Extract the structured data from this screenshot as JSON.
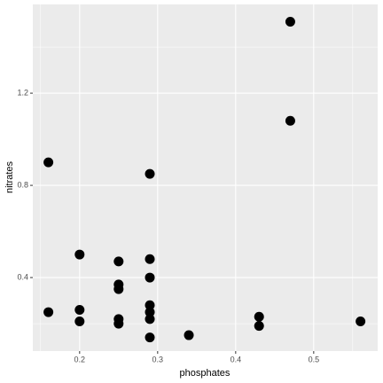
{
  "chart_data": {
    "type": "scatter",
    "x_label": "phosphates",
    "y_label": "nitrates",
    "x": [
      0.47,
      0.47,
      0.16,
      0.29,
      0.2,
      0.25,
      0.29,
      0.29,
      0.25,
      0.25,
      0.16,
      0.2,
      0.2,
      0.25,
      0.25,
      0.29,
      0.29,
      0.29,
      0.29,
      0.34,
      0.43,
      0.43,
      0.56
    ],
    "values": [
      1.51,
      1.08,
      0.9,
      0.85,
      0.5,
      0.47,
      0.48,
      0.4,
      0.37,
      0.35,
      0.25,
      0.26,
      0.21,
      0.22,
      0.2,
      0.28,
      0.25,
      0.22,
      0.14,
      0.15,
      0.23,
      0.19,
      0.21
    ],
    "color": "#000000",
    "xlim": [
      0.14,
      0.582
    ],
    "ylim": [
      0.081,
      1.585
    ],
    "xticks": [
      0.2,
      0.3,
      0.4,
      0.5
    ],
    "yticks": [
      0.4,
      0.8,
      1.2
    ],
    "grid": true
  }
}
